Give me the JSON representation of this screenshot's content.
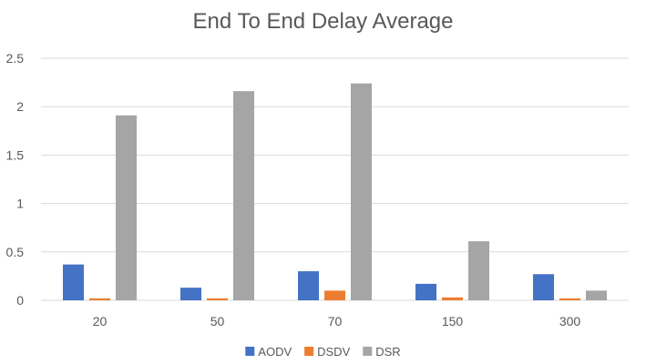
{
  "chart_data": {
    "type": "bar",
    "title": "End To End Delay Average",
    "xlabel": "",
    "ylabel": "",
    "categories": [
      "20",
      "50",
      "70",
      "150",
      "300"
    ],
    "series": [
      {
        "name": "AODV",
        "values": [
          0.37,
          0.13,
          0.3,
          0.17,
          0.27
        ],
        "color": "#4472C4"
      },
      {
        "name": "DSDV",
        "values": [
          0.02,
          0.02,
          0.1,
          0.03,
          0.02
        ],
        "color": "#ED7D31"
      },
      {
        "name": "DSR",
        "values": [
          1.91,
          2.16,
          2.24,
          0.61,
          0.1
        ],
        "color": "#A5A5A5"
      }
    ],
    "ylim": [
      0,
      2.5
    ],
    "yticks": [
      "0",
      "0.5",
      "1",
      "1.5",
      "2",
      "2.5"
    ],
    "grid": true,
    "legend": "bottom"
  }
}
